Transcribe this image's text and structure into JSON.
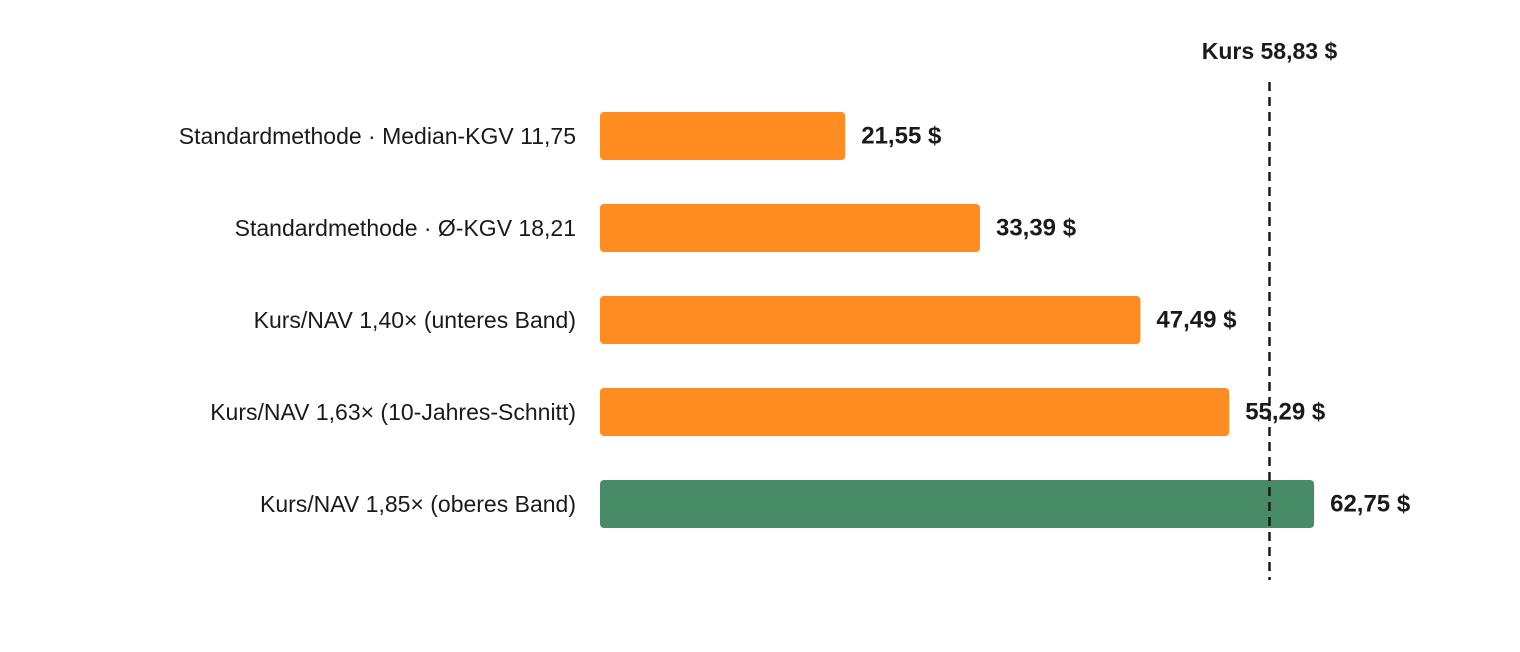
{
  "chart_data": {
    "type": "bar",
    "orientation": "horizontal",
    "categories": [
      "Standardmethode · Median-KGV 11,75",
      "Standardmethode · Ø-KGV 18,21",
      "Kurs/NAV 1,40× (unteres Band)",
      "Kurs/NAV 1,63× (10-Jahres-Schnitt)",
      "Kurs/NAV 1,85× (oberes Band)"
    ],
    "values": [
      21.55,
      33.39,
      47.49,
      55.29,
      62.75
    ],
    "value_labels": [
      "21,55 $",
      "33,39 $",
      "47,49 $",
      "55,29 $",
      "62,75 $"
    ],
    "bar_colors": [
      "#fe8c21",
      "#fe8c21",
      "#fe8c21",
      "#fe8c21",
      "#478c67"
    ],
    "reference_line": {
      "value": 58.83,
      "label": "Kurs 58,83 $",
      "style": "dashed",
      "color": "#1a1a1a"
    },
    "xlim": [
      0,
      66
    ],
    "grid": false,
    "legend": "none"
  }
}
